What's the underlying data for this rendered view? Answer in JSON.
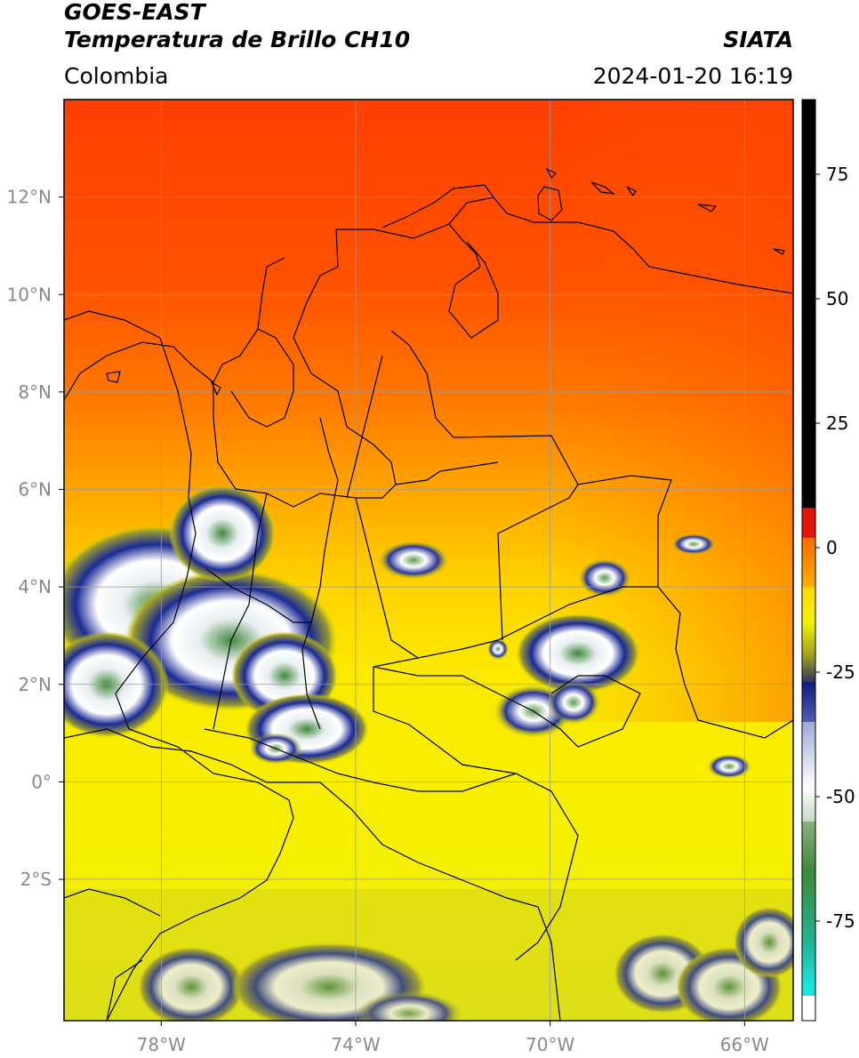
{
  "header": {
    "satellite": "GOES-EAST",
    "product": "Temperatura de Brillo CH10",
    "brand": "SIATA",
    "region": "Colombia",
    "timestamp": "2024-01-20 16:19"
  },
  "map": {
    "lon_range": [
      -80,
      -65
    ],
    "lat_range": [
      -4.9,
      14
    ],
    "lon_ticks": [
      {
        "value": -78,
        "label": "78°W"
      },
      {
        "value": -74,
        "label": "74°W"
      },
      {
        "value": -70,
        "label": "70°W"
      },
      {
        "value": -66,
        "label": "66°W"
      }
    ],
    "lat_ticks": [
      {
        "value": 12,
        "label": "12°N"
      },
      {
        "value": 10,
        "label": "10°N"
      },
      {
        "value": 8,
        "label": "8°N"
      },
      {
        "value": 6,
        "label": "6°N"
      },
      {
        "value": 4,
        "label": "4°N"
      },
      {
        "value": 2,
        "label": "2°N"
      },
      {
        "value": 0,
        "label": "0°"
      },
      {
        "value": -2,
        "label": "2°S"
      }
    ],
    "grid": true
  },
  "colorbar": {
    "range": [
      -95,
      90
    ],
    "ticks": [
      {
        "value": 75,
        "label": "75"
      },
      {
        "value": 50,
        "label": "50"
      },
      {
        "value": 25,
        "label": "25"
      },
      {
        "value": 0,
        "label": "0"
      },
      {
        "value": -25,
        "label": "-25"
      },
      {
        "value": -50,
        "label": "-50"
      },
      {
        "value": -75,
        "label": "-75"
      }
    ],
    "colors": {
      "warm_black": "#000000",
      "red": "#e4140a",
      "orange": "#ff6a00",
      "yellow": "#f3f300",
      "olive": "#9a9a20",
      "navy": "#101a80",
      "white": "#ffffff",
      "green": "#3d8a36",
      "teal": "#1fb79a",
      "cyan": "#19e6e0"
    }
  }
}
